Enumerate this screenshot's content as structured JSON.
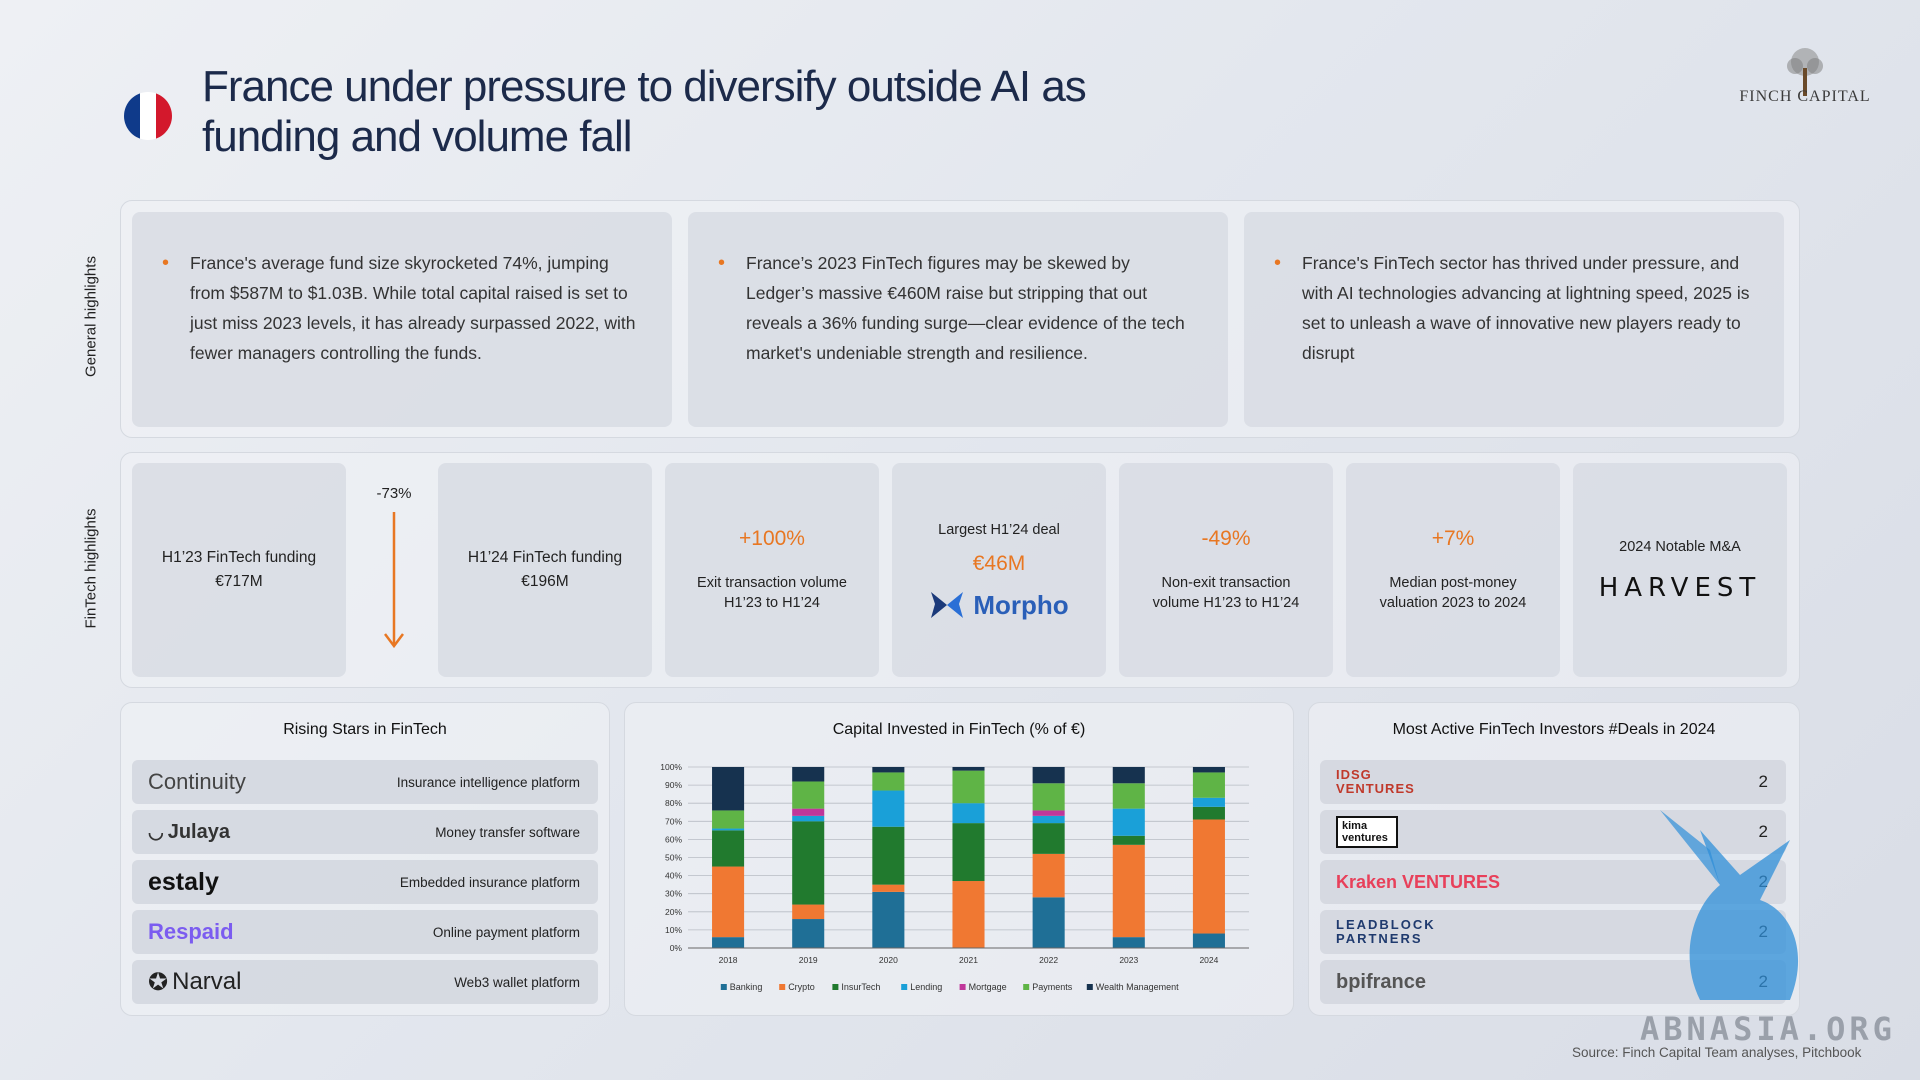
{
  "header": {
    "title": "France under pressure to diversify outside AI as funding and volume fall",
    "logo": "FINCH CAPITAL",
    "flag_colors": [
      "#0f3a8a",
      "#ffffff",
      "#d3182c"
    ]
  },
  "labels": {
    "general": "General highlights",
    "fintech": "FinTech highlights"
  },
  "general_highlights": [
    "France's average fund size skyrocketed 74%, jumping from $587M to $1.03B. While total capital raised is set to just miss 2023 levels, it has already surpassed 2022, with fewer managers controlling the funds.",
    "France’s 2023 FinTech figures may be skewed by Ledger’s massive €460M raise but stripping that out reveals a 36% funding surge—clear evidence of the tech market's undeniable strength and resilience.",
    "France's FinTech sector has thrived under pressure, and with AI technologies advancing at lightning speed, 2025 is set to unleash a wave of innovative new players ready to disrupt"
  ],
  "fintech_highlights": {
    "h1_23": "H1’23 FinTech funding\n€717M",
    "change": "-73%",
    "h1_24": "H1’24 FinTech funding\n€196M",
    "exit": {
      "value": "+100%",
      "label": "Exit transaction volume\nH1’23 to H1’24"
    },
    "largest": {
      "title": "Largest H1’24 deal",
      "value": "€46M",
      "company": "Morpho"
    },
    "nonexit": {
      "value": "-49%",
      "label": "Non-exit transaction\nvolume H1’23 to H1’24"
    },
    "median": {
      "value": "+7%",
      "label": "Median post-money\nvaluation 2023 to 2024"
    },
    "ma": {
      "title": "2024 Notable M&A",
      "company": "HARVEST"
    }
  },
  "rising_stars": {
    "title": "Rising Stars in FinTech",
    "items": [
      {
        "name": "Continuity",
        "desc": "Insurance intelligence platform"
      },
      {
        "name": "Julaya",
        "desc": "Money transfer software"
      },
      {
        "name": "estaly",
        "desc": "Embedded insurance platform"
      },
      {
        "name": "Respaid",
        "desc": "Online payment platform"
      },
      {
        "name": "Narval",
        "desc": "Web3 wallet platform"
      }
    ]
  },
  "investors": {
    "title": "Most Active FinTech Investors #Deals in 2024",
    "items": [
      {
        "name": "IDSG VENTURES",
        "deals": "2"
      },
      {
        "name": "kima ventures",
        "deals": "2"
      },
      {
        "name": "Kraken VENTURES",
        "deals": "2"
      },
      {
        "name": "LEADBLOCK PARTNERS",
        "deals": "2"
      },
      {
        "name": "bpifrance",
        "deals": "2"
      }
    ]
  },
  "chart_data": {
    "type": "bar",
    "stacked": true,
    "title": "Capital Invested in FinTech (% of €)",
    "categories": [
      "2018",
      "2019",
      "2020",
      "2021",
      "2022",
      "2023",
      "2024"
    ],
    "yticks": [
      "0%",
      "10%",
      "20%",
      "30%",
      "40%",
      "50%",
      "60%",
      "70%",
      "80%",
      "90%",
      "100%"
    ],
    "ylim": [
      0,
      100
    ],
    "series": [
      {
        "name": "Banking",
        "color": "#1f6f96",
        "values": [
          6,
          16,
          31,
          0,
          28,
          6,
          8
        ]
      },
      {
        "name": "Crypto",
        "color": "#f07832",
        "values": [
          39,
          8,
          4,
          37,
          24,
          51,
          63
        ]
      },
      {
        "name": "InsurTech",
        "color": "#217a2e",
        "values": [
          20,
          46,
          32,
          32,
          17,
          5,
          7
        ]
      },
      {
        "name": "Lending",
        "color": "#1aa0d8",
        "values": [
          1,
          3,
          20,
          11,
          4,
          15,
          5
        ]
      },
      {
        "name": "Mortgage",
        "color": "#c0379a",
        "values": [
          0,
          4,
          0,
          0,
          3,
          0,
          0
        ]
      },
      {
        "name": "Payments",
        "color": "#5fb446",
        "values": [
          10,
          15,
          10,
          18,
          15,
          14,
          14
        ]
      },
      {
        "name": "Wealth Management",
        "color": "#16324f",
        "values": [
          24,
          8,
          3,
          2,
          9,
          9,
          3
        ]
      }
    ]
  },
  "source": "Source: Finch Capital Team analyses, Pitchbook",
  "watermark": "ABNASIA.ORG"
}
